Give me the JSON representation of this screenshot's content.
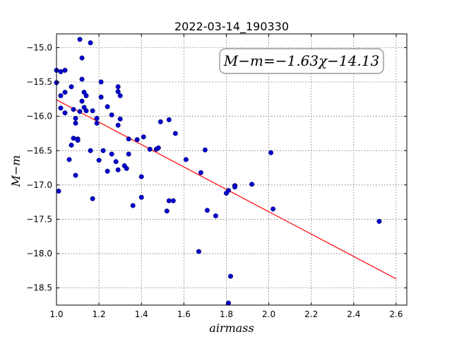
{
  "chart_data": {
    "type": "scatter",
    "title": "2022-03-14_190330",
    "xlabel": "airmass",
    "ylabel": "M−m",
    "xlim": [
      1.0,
      2.65
    ],
    "ylim": [
      -18.75,
      -14.8
    ],
    "y_inverted": true,
    "grid": true,
    "x_ticks": [
      1.0,
      1.2,
      1.4,
      1.6,
      1.8,
      2.0,
      2.2,
      2.4,
      2.6
    ],
    "x_tick_labels": [
      "1.0",
      "1.2",
      "1.4",
      "1.6",
      "1.8",
      "2.0",
      "2.2",
      "2.4",
      "2.6"
    ],
    "y_ticks": [
      -15.0,
      -15.5,
      -16.0,
      -16.5,
      -17.0,
      -17.5,
      -18.0,
      -18.5
    ],
    "y_tick_labels": [
      "−15.0",
      "−15.5",
      "−16.0",
      "−16.5",
      "−17.0",
      "−17.5",
      "−18.0",
      "−18.5"
    ],
    "annotation": "M−m=−1.63χ−14.13",
    "fit": {
      "slope": -1.63,
      "intercept": -14.13,
      "x_range": [
        1.0,
        2.6
      ],
      "color": "#ff0000"
    },
    "series": [
      {
        "color": "#0000cc",
        "points": [
          [
            1.0,
            -15.33
          ],
          [
            1.02,
            -15.35
          ],
          [
            1.04,
            -15.33
          ],
          [
            1.0,
            -15.51
          ],
          [
            1.02,
            -15.7
          ],
          [
            1.04,
            -15.65
          ],
          [
            1.02,
            -15.88
          ],
          [
            1.04,
            -15.95
          ],
          [
            1.06,
            -16.63
          ],
          [
            1.01,
            -17.09
          ],
          [
            1.07,
            -15.57
          ],
          [
            1.08,
            -15.9
          ],
          [
            1.08,
            -16.32
          ],
          [
            1.09,
            -16.1
          ],
          [
            1.09,
            -16.03
          ],
          [
            1.1,
            -16.33
          ],
          [
            1.1,
            -16.35
          ],
          [
            1.07,
            -16.42
          ],
          [
            1.09,
            -16.86
          ],
          [
            1.11,
            -14.88
          ],
          [
            1.12,
            -15.15
          ],
          [
            1.12,
            -15.46
          ],
          [
            1.12,
            -15.78
          ],
          [
            1.13,
            -15.87
          ],
          [
            1.13,
            -15.65
          ],
          [
            1.14,
            -15.7
          ],
          [
            1.14,
            -15.92
          ],
          [
            1.11,
            -15.93
          ],
          [
            1.16,
            -14.93
          ],
          [
            1.17,
            -15.92
          ],
          [
            1.19,
            -16.03
          ],
          [
            1.19,
            -16.1
          ],
          [
            1.16,
            -16.5
          ],
          [
            1.2,
            -16.64
          ],
          [
            1.17,
            -17.2
          ],
          [
            1.21,
            -15.5
          ],
          [
            1.21,
            -15.72
          ],
          [
            1.22,
            -16.5
          ],
          [
            1.24,
            -15.86
          ],
          [
            1.24,
            -16.8
          ],
          [
            1.26,
            -15.98
          ],
          [
            1.26,
            -16.55
          ],
          [
            1.28,
            -16.66
          ],
          [
            1.29,
            -15.57
          ],
          [
            1.29,
            -15.64
          ],
          [
            1.3,
            -15.7
          ],
          [
            1.29,
            -16.13
          ],
          [
            1.3,
            -16.04
          ],
          [
            1.29,
            -16.78
          ],
          [
            1.32,
            -16.72
          ],
          [
            1.33,
            -16.76
          ],
          [
            1.34,
            -16.33
          ],
          [
            1.34,
            -16.55
          ],
          [
            1.36,
            -17.3
          ],
          [
            1.38,
            -16.34
          ],
          [
            1.41,
            -16.3
          ],
          [
            1.4,
            -16.88
          ],
          [
            1.4,
            -17.18
          ],
          [
            1.44,
            -16.48
          ],
          [
            1.47,
            -16.48
          ],
          [
            1.48,
            -16.46
          ],
          [
            1.49,
            -16.08
          ],
          [
            1.52,
            -17.38
          ],
          [
            1.53,
            -16.05
          ],
          [
            1.53,
            -17.23
          ],
          [
            1.55,
            -17.23
          ],
          [
            1.56,
            -16.25
          ],
          [
            1.61,
            -16.63
          ],
          [
            1.67,
            -17.97
          ],
          [
            1.68,
            -16.82
          ],
          [
            1.7,
            -16.49
          ],
          [
            1.71,
            -17.37
          ],
          [
            1.75,
            -17.45
          ],
          [
            1.8,
            -17.12
          ],
          [
            1.81,
            -17.08
          ],
          [
            1.81,
            -18.72
          ],
          [
            1.82,
            -18.33
          ],
          [
            1.84,
            -17.01
          ],
          [
            1.84,
            -17.03
          ],
          [
            1.92,
            -16.99
          ],
          [
            2.01,
            -16.53
          ],
          [
            2.02,
            -17.35
          ],
          [
            2.52,
            -17.53
          ]
        ]
      }
    ]
  }
}
